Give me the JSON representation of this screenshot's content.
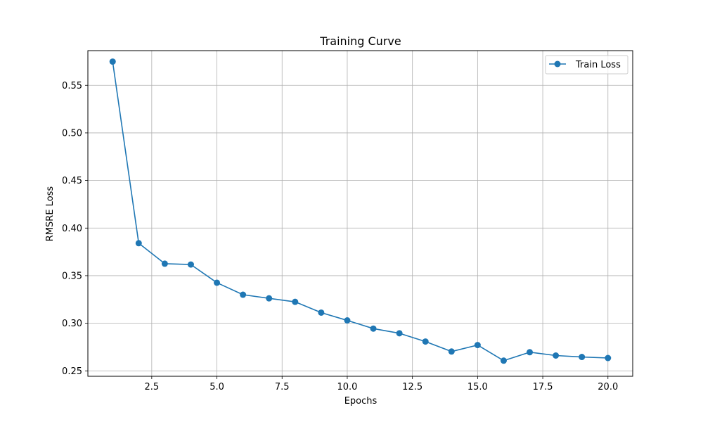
{
  "chart_data": {
    "type": "line",
    "title": "Training Curve",
    "xlabel": "Epochs",
    "ylabel": "RMSRE Loss",
    "xlim": [
      0.05,
      20.95
    ],
    "ylim": [
      0.2443,
      0.5864
    ],
    "xticks": [
      2.5,
      5.0,
      7.5,
      10.0,
      12.5,
      15.0,
      17.5,
      20.0
    ],
    "xtick_labels": [
      "2.5",
      "5.0",
      "7.5",
      "10.0",
      "12.5",
      "15.0",
      "17.5",
      "20.0"
    ],
    "yticks": [
      0.25,
      0.3,
      0.35,
      0.4,
      0.45,
      0.5,
      0.55
    ],
    "ytick_labels": [
      "0.25",
      "0.30",
      "0.35",
      "0.40",
      "0.45",
      "0.50",
      "0.55"
    ],
    "grid": true,
    "legend_position": "upper right",
    "series": [
      {
        "name": "Train Loss",
        "color": "#1f77b4",
        "marker": "circle",
        "x": [
          1,
          2,
          3,
          4,
          5,
          6,
          7,
          8,
          9,
          10,
          11,
          12,
          13,
          14,
          15,
          16,
          17,
          18,
          19,
          20
        ],
        "y": [
          0.5749,
          0.3841,
          0.3626,
          0.3617,
          0.3426,
          0.33,
          0.3262,
          0.3225,
          0.3112,
          0.303,
          0.2944,
          0.2895,
          0.2808,
          0.2703,
          0.2771,
          0.2607,
          0.2696,
          0.2661,
          0.2646,
          0.2635
        ]
      }
    ]
  }
}
